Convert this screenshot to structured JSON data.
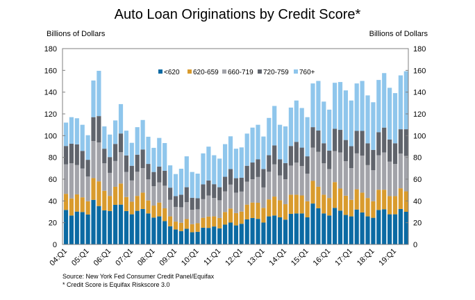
{
  "chart_data": {
    "type": "bar",
    "stacked": true,
    "title": "Auto Loan Originations by Credit Score*",
    "ylabel_left": "Billions of Dollars",
    "ylabel_right": "Billions of Dollars",
    "ylim": [
      0,
      180
    ],
    "yticks": [
      0,
      20,
      40,
      60,
      80,
      100,
      120,
      140,
      160,
      180
    ],
    "grid": false,
    "legend_position": "top-center",
    "xtick_labels": [
      "04:Q1",
      "05:Q1",
      "06:Q1",
      "07:Q1",
      "08:Q1",
      "09:Q1",
      "10:Q1",
      "11:Q1",
      "12:Q1",
      "13:Q1",
      "14:Q1",
      "15:Q1",
      "16:Q1",
      "17:Q1",
      "18:Q1",
      "19:Q1"
    ],
    "categories": [
      "04:Q1",
      "04:Q2",
      "04:Q3",
      "04:Q4",
      "05:Q1",
      "05:Q2",
      "05:Q3",
      "05:Q4",
      "06:Q1",
      "06:Q2",
      "06:Q3",
      "06:Q4",
      "07:Q1",
      "07:Q2",
      "07:Q3",
      "07:Q4",
      "08:Q1",
      "08:Q2",
      "08:Q3",
      "08:Q4",
      "09:Q1",
      "09:Q2",
      "09:Q3",
      "09:Q4",
      "10:Q1",
      "10:Q2",
      "10:Q3",
      "10:Q4",
      "11:Q1",
      "11:Q2",
      "11:Q3",
      "11:Q4",
      "12:Q1",
      "12:Q2",
      "12:Q3",
      "12:Q4",
      "13:Q1",
      "13:Q2",
      "13:Q3",
      "13:Q4",
      "14:Q1",
      "14:Q2",
      "14:Q3",
      "14:Q4",
      "15:Q1",
      "15:Q2",
      "15:Q3",
      "15:Q4",
      "16:Q1",
      "16:Q2",
      "16:Q3",
      "16:Q4",
      "17:Q1",
      "17:Q2",
      "17:Q3",
      "17:Q4",
      "18:Q1",
      "18:Q2",
      "18:Q3",
      "18:Q4",
      "19:Q1",
      "19:Q2",
      "19:Q3"
    ],
    "series": [
      {
        "name": "<620",
        "color": "#0b6aa3",
        "values": [
          31.7,
          26.6,
          30.2,
          29.8,
          27.5,
          41.0,
          35.3,
          31.3,
          30.7,
          36.4,
          36.6,
          30.7,
          27.7,
          30.9,
          32.6,
          28.5,
          24.7,
          25.8,
          21.4,
          16.7,
          13.7,
          12.3,
          14.4,
          11.2,
          11.6,
          15.4,
          15.2,
          16.5,
          14.8,
          18.2,
          20.1,
          17.5,
          19.0,
          23.0,
          24.3,
          23.5,
          20.1,
          25.8,
          26.6,
          24.9,
          22.8,
          28.1,
          28.5,
          28.5,
          24.9,
          37.6,
          33.2,
          28.5,
          26.6,
          33.6,
          31.1,
          27.1,
          25.8,
          32.1,
          29.4,
          25.8,
          24.5,
          31.7,
          32.3,
          27.7,
          27.7,
          32.6,
          30.0
        ]
      },
      {
        "name": "620-659",
        "color": "#d99b2d",
        "values": [
          14.8,
          15.7,
          15.8,
          13.5,
          12.2,
          20.0,
          22.7,
          18.0,
          13.9,
          16.6,
          19.4,
          12.9,
          11.6,
          13.7,
          15.0,
          11.9,
          11.0,
          12.7,
          11.8,
          9.1,
          7.3,
          7.6,
          8.9,
          7.4,
          7.9,
          9.1,
          10.4,
          9.3,
          9.5,
          11.6,
          12.9,
          11.3,
          11.2,
          13.6,
          14.2,
          14.8,
          13.5,
          15.6,
          17.4,
          15.7,
          14.2,
          17.6,
          17.2,
          16.5,
          14.8,
          20.8,
          19.8,
          17.2,
          16.1,
          23.7,
          20.3,
          17.7,
          15.2,
          18.6,
          18.2,
          16.9,
          15.2,
          18.6,
          18.0,
          16.7,
          16.7,
          19.0,
          18.8
        ]
      },
      {
        "name": "660-719",
        "color": "#a2a3a9",
        "values": [
          27.1,
          32.3,
          27.0,
          26.5,
          22.7,
          34.0,
          35.7,
          25.3,
          21.2,
          23.7,
          28.8,
          23.0,
          19.5,
          22.2,
          22.6,
          19.4,
          17.8,
          18.5,
          20.8,
          15.2,
          13.5,
          14.3,
          15.6,
          13.3,
          12.8,
          17.1,
          19.4,
          16.9,
          16.3,
          19.0,
          22.0,
          18.8,
          18.4,
          21.1,
          21.5,
          23.7,
          18.8,
          25.4,
          29.6,
          22.8,
          23.0,
          26.8,
          29.6,
          27.0,
          25.3,
          30.6,
          32.2,
          28.9,
          26.6,
          28.5,
          33.2,
          31.7,
          29.2,
          33.0,
          34.0,
          30.2,
          28.6,
          31.7,
          34.3,
          31.7,
          29.6,
          31.9,
          32.6
        ]
      },
      {
        "name": "720-759",
        "color": "#60646c",
        "values": [
          16.9,
          18.0,
          19.0,
          16.2,
          15.4,
          22.0,
          24.3,
          13.4,
          14.5,
          15.7,
          17.2,
          15.2,
          13.5,
          15.7,
          17.1,
          14.2,
          13.1,
          14.5,
          13.7,
          11.2,
          9.9,
          11.5,
          13.7,
          11.0,
          10.2,
          13.6,
          13.8,
          12.7,
          12.0,
          13.4,
          14.3,
          13.3,
          12.7,
          14.6,
          15.3,
          16.2,
          16.9,
          15.2,
          17.4,
          14.8,
          14.8,
          18.0,
          19.0,
          17.0,
          16.0,
          18.8,
          19.5,
          18.4,
          17.0,
          20.5,
          20.7,
          19.5,
          20.1,
          20.7,
          22.8,
          20.1,
          18.6,
          21.2,
          22.8,
          20.3,
          19.0,
          22.4,
          24.5
        ]
      },
      {
        "name": "760+",
        "color": "#8fc6ec",
        "values": [
          21.5,
          24.4,
          24.0,
          24.0,
          22.6,
          33.7,
          41.6,
          20.5,
          20.7,
          21.6,
          27.0,
          22.8,
          21.1,
          25.3,
          27.1,
          25.0,
          22.2,
          26.4,
          25.5,
          20.5,
          20.3,
          23.9,
          28.4,
          23.7,
          22.6,
          28.5,
          31.1,
          26.6,
          26.3,
          30.0,
          30.1,
          27.1,
          27.9,
          29.6,
          32.1,
          31.8,
          29.9,
          34.3,
          36.3,
          31.8,
          33.7,
          35.3,
          38.0,
          36.4,
          36.0,
          40.2,
          45.6,
          38.3,
          37.6,
          42.3,
          44.0,
          45.6,
          42.0,
          43.6,
          45.9,
          44.0,
          43.8,
          48.0,
          50.1,
          47.6,
          46.1,
          49.5,
          53.3
        ]
      }
    ],
    "notes": [
      "Source: New York Fed Consumer Credit Panel/Equifax",
      "* Credit Score is Equifax Riskscore 3.0"
    ]
  }
}
